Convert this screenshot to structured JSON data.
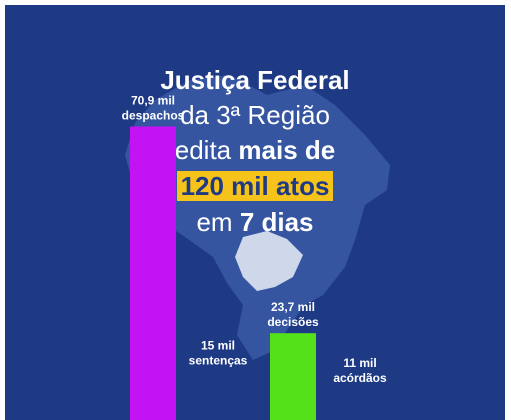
{
  "headline": {
    "line1": "Justiça Federal",
    "line2": "da 3ª Região",
    "line3_prefix": "edita",
    "line3_bold": "mais de",
    "line4_highlight": "120 mil atos",
    "line5_prefix": "em",
    "line5_bold": "7 dias"
  },
  "colors": {
    "background": "#1f3a85",
    "highlight": "#f6c31b",
    "map": "#3a5aa6",
    "map_region": "#cfd8ea"
  },
  "chart_data": {
    "type": "bar",
    "categories": [
      "despachos",
      "sentenças",
      "decisões",
      "acórdãos"
    ],
    "values": [
      70.9,
      15,
      23.7,
      11
    ],
    "value_labels": [
      "70,9 mil",
      "15 mil",
      "23,7 mil",
      "11 mil"
    ],
    "colors": [
      "#c313f2",
      "#1f3a85",
      "#55e11a",
      "#1f3a85"
    ],
    "unit": "mil",
    "ylim": [
      0,
      80
    ]
  }
}
